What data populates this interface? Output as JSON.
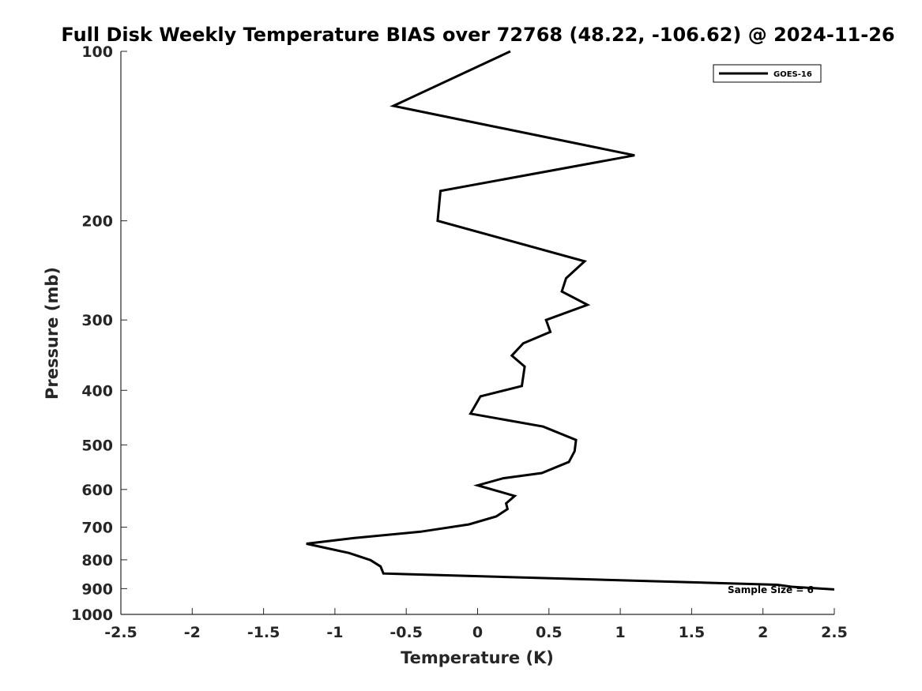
{
  "chart_data": {
    "type": "line",
    "title": "Full Disk Weekly Temperature BIAS over 72768 (48.22, -106.62) @ 2024-11-26",
    "xlabel": "Temperature (K)",
    "ylabel": "Pressure (mb)",
    "xlim": [
      -2.5,
      2.5
    ],
    "ylim": [
      100,
      1000
    ],
    "y_scale": "log",
    "y_reversed": true,
    "x_ticks": [
      -2.5,
      -2,
      -1.5,
      -1,
      -0.5,
      0,
      0.5,
      1,
      1.5,
      2,
      2.5
    ],
    "x_tick_labels": [
      "-2.5",
      "-2",
      "-1.5",
      "-1",
      "-0.5",
      "0",
      "0.5",
      "1",
      "1.5",
      "2",
      "2.5"
    ],
    "y_ticks": [
      100,
      200,
      300,
      400,
      500,
      600,
      700,
      800,
      900,
      1000
    ],
    "y_tick_labels": [
      "100",
      "200",
      "300",
      "400",
      "500",
      "600",
      "700",
      "800",
      "900",
      "1000"
    ],
    "grid": false,
    "legend_position": "top-right",
    "annotation": "Sample Size = 6",
    "series": [
      {
        "name": "GOES-16",
        "color": "#000000",
        "points": [
          [
            0.23,
            100
          ],
          [
            -0.59,
            125
          ],
          [
            1.1,
            153
          ],
          [
            -0.26,
            177
          ],
          [
            -0.28,
            200
          ],
          [
            0.75,
            236
          ],
          [
            0.62,
            253
          ],
          [
            0.59,
            267
          ],
          [
            0.77,
            282
          ],
          [
            0.48,
            300
          ],
          [
            0.51,
            315
          ],
          [
            0.32,
            330
          ],
          [
            0.24,
            347
          ],
          [
            0.33,
            363
          ],
          [
            0.31,
            393
          ],
          [
            0.02,
            410
          ],
          [
            -0.05,
            440
          ],
          [
            0.46,
            464
          ],
          [
            0.69,
            490
          ],
          [
            0.68,
            513
          ],
          [
            0.64,
            536
          ],
          [
            0.45,
            561
          ],
          [
            0.18,
            573
          ],
          [
            0.0,
            590
          ],
          [
            0.26,
            616
          ],
          [
            0.2,
            635
          ],
          [
            0.21,
            650
          ],
          [
            0.13,
            670
          ],
          [
            -0.06,
            692
          ],
          [
            -0.4,
            713
          ],
          [
            -0.87,
            732
          ],
          [
            -1.2,
            749
          ],
          [
            -0.9,
            778
          ],
          [
            -0.75,
            801
          ],
          [
            -0.68,
            822
          ],
          [
            -0.66,
            846
          ],
          [
            2.1,
            886
          ],
          [
            2.2,
            893
          ],
          [
            2.5,
            903
          ]
        ]
      }
    ]
  }
}
